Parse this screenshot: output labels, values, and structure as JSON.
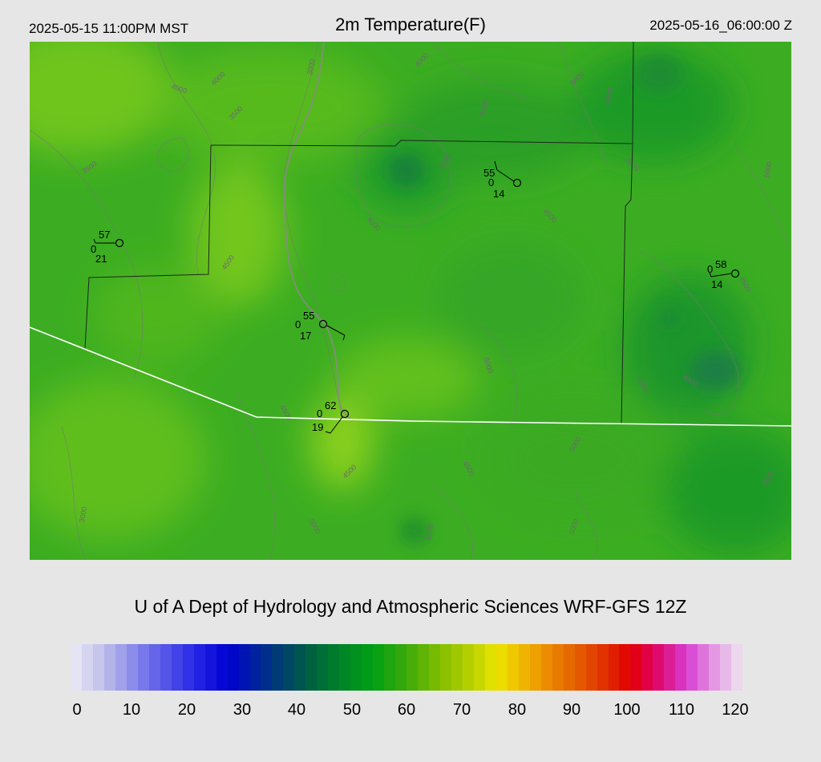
{
  "header": {
    "local_time": "2025-05-15 11:00PM MST",
    "title": "2m Temperature(F)",
    "utc_time": "2025-05-16_06:00:00 Z"
  },
  "credit": "U of A Dept of Hydrology and Atmospheric Sciences WRF-GFS 12Z",
  "colorbar": {
    "ticks": [
      "0",
      "10",
      "20",
      "30",
      "40",
      "50",
      "60",
      "70",
      "80",
      "90",
      "100",
      "110",
      "120"
    ]
  },
  "stations": [
    {
      "temp": "57",
      "sky": "0",
      "dew": "21"
    },
    {
      "temp": "55",
      "sky": "0",
      "dew": "14"
    },
    {
      "temp": "58",
      "sky": "0",
      "dew": "14"
    },
    {
      "temp": "55",
      "sky": "0",
      "dew": "17"
    },
    {
      "temp": "62",
      "sky": "0",
      "dew": "19"
    }
  ],
  "contour_labels": [
    "3500",
    "4000",
    "3500",
    "4000",
    "3000",
    "4000",
    "5000",
    "5000",
    "3500",
    "4500",
    "4000",
    "4500",
    "5000",
    "5000",
    "4500",
    "4500",
    "3500",
    "4500",
    "5000",
    "4500",
    "4500",
    "3000",
    "4500",
    "5000",
    "5000",
    "5000",
    "5000",
    "4500"
  ]
}
